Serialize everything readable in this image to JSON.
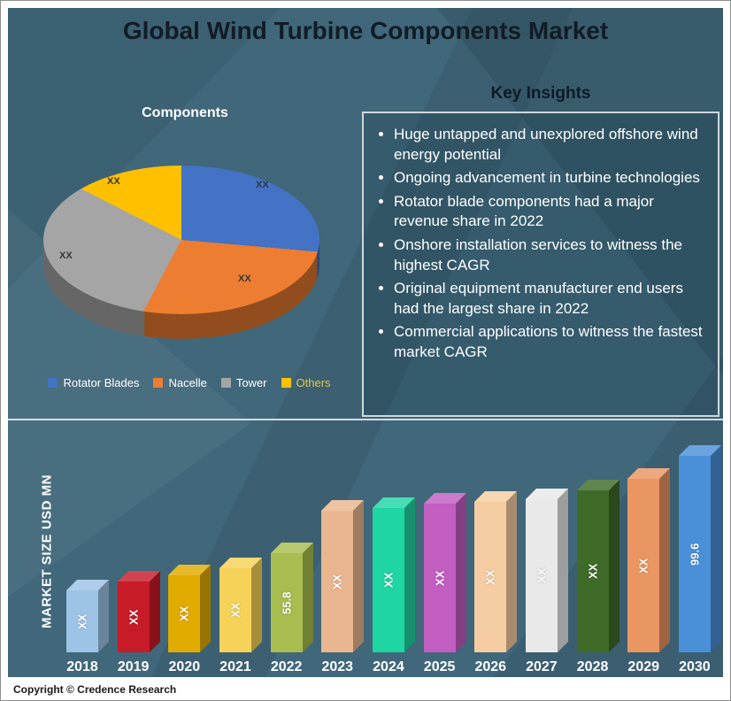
{
  "header": {
    "title": "Global Wind Turbine Components Market"
  },
  "theme": {
    "background": "#40677a",
    "title_text": "#121c26",
    "insight_border": "#cfd8dc",
    "divider": "#e2eaee"
  },
  "pie_section": {
    "title": "Components",
    "slices": [
      {
        "name": "Rotator Blades",
        "value_label": "XX",
        "color": "#4472c4",
        "legend_text": "#ffffff",
        "start_deg": 0,
        "end_deg": 95
      },
      {
        "name": "Nacelle",
        "value_label": "XX",
        "color": "#ed7d31",
        "legend_text": "#ffffff",
        "start_deg": 95,
        "end_deg": 208
      },
      {
        "name": "Tower",
        "value_label": "XX",
        "color": "#a5a5a5",
        "legend_text": "#ffffff",
        "start_deg": 208,
        "end_deg": 297
      },
      {
        "name": "Others",
        "value_label": "XX",
        "color": "#ffc000",
        "legend_text": "#e3c44d",
        "start_deg": 297,
        "end_deg": 360
      }
    ]
  },
  "insights": {
    "title": "Key Insights",
    "bullets": [
      "Huge untapped and unexplored offshore wind energy potential",
      "Ongoing advancement in turbine technologies",
      "Rotator blade components had a major revenue share in 2022",
      "Onshore installation services to witness the highest CAGR",
      "Original equipment manufacturer end users had the largest share in 2022",
      "Commercial applications to witness the fastest market CAGR"
    ]
  },
  "chart_data": {
    "type": "bar",
    "title": "",
    "xlabel": "",
    "ylabel": "MARKET SIZE USD MN",
    "categories": [
      "2018",
      "2019",
      "2020",
      "2021",
      "2022",
      "2023",
      "2024",
      "2025",
      "2026",
      "2027",
      "2028",
      "2029",
      "2030"
    ],
    "value_labels": [
      "XX",
      "XX",
      "XX",
      "XX",
      "55.8",
      "XX",
      "XX",
      "XX",
      "XX",
      "XX",
      "XX",
      "XX",
      "99.6"
    ],
    "values_estimated": [
      39,
      43,
      46,
      49,
      55.8,
      75,
      76,
      78,
      79,
      80,
      84,
      89,
      99.6
    ],
    "known_values": {
      "2022": 55.8,
      "2030": 99.6
    },
    "bar_colors": [
      "#9dc3e6",
      "#c81b28",
      "#e2ab00",
      "#f6d258",
      "#a8bd4f",
      "#eab690",
      "#1fd6a3",
      "#c25dc2",
      "#f6cda2",
      "#e9e9e9",
      "#3f6b29",
      "#ea9663",
      "#4a90d8"
    ],
    "grid": false,
    "legend_position": "none"
  },
  "footer": {
    "copyright": "Copyright © Credence Research"
  }
}
